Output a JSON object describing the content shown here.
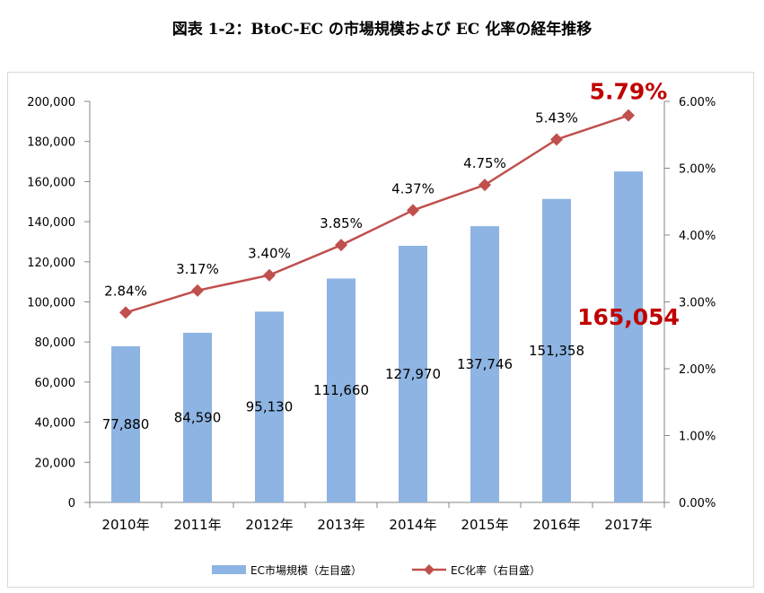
{
  "title": "図表 1-2：BtoC-EC の市場規模および EC 化率の経年推移",
  "chart_data": {
    "type": "bar",
    "categories": [
      "2010年",
      "2011年",
      "2012年",
      "2013年",
      "2014年",
      "2015年",
      "2016年",
      "2017年"
    ],
    "series": [
      {
        "name": "EC市場規模（左目盛）",
        "type": "bar",
        "axis": "left",
        "values": [
          77880,
          84590,
          95130,
          111660,
          127970,
          137746,
          151358,
          165054
        ],
        "labels": [
          "77,880",
          "84,590",
          "95,130",
          "111,660",
          "127,970",
          "137,746",
          "151,358",
          "165,054"
        ],
        "color": "#8db4e2"
      },
      {
        "name": "EC化率（右目盛）",
        "type": "line",
        "axis": "right",
        "values": [
          2.84,
          3.17,
          3.4,
          3.85,
          4.37,
          4.75,
          5.43,
          5.79
        ],
        "labels": [
          "2.84%",
          "3.17%",
          "3.40%",
          "3.85%",
          "4.37%",
          "4.75%",
          "5.43%",
          "5.79%"
        ],
        "color": "#c0504d"
      }
    ],
    "y_left": {
      "min": 0,
      "max": 200000,
      "ticks": [
        "0",
        "20,000",
        "40,000",
        "60,000",
        "80,000",
        "100,000",
        "120,000",
        "140,000",
        "160,000",
        "180,000",
        "200,000"
      ]
    },
    "y_right": {
      "min": 0,
      "max": 6,
      "ticks": [
        "0.00%",
        "1.00%",
        "2.00%",
        "3.00%",
        "4.00%",
        "5.00%",
        "6.00%"
      ]
    },
    "highlight_color": "#c00000",
    "legend_position": "bottom",
    "grid": false
  }
}
